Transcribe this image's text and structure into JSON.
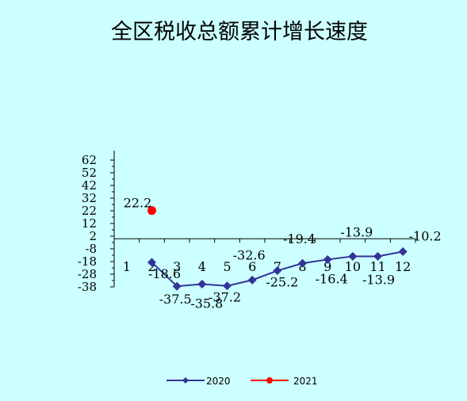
{
  "chart_data": {
    "type": "line",
    "title": "全区税收总额累计增长速度",
    "xlabel": "",
    "ylabel": "",
    "categories": [
      "1",
      "2",
      "3",
      "4",
      "5",
      "6",
      "7",
      "8",
      "9",
      "10",
      "11",
      "12"
    ],
    "ylim": [
      -38,
      62
    ],
    "yticks": [
      "62",
      "52",
      "42",
      "32",
      "22",
      "12",
      "2",
      "-8",
      "-18",
      "-28",
      "-38"
    ],
    "grid": false,
    "legend_position": "bottom",
    "series": [
      {
        "name": "2020",
        "color": "#333399",
        "marker": "diamond",
        "values": [
          null,
          -18.6,
          -37.5,
          -35.8,
          -37.2,
          -32.6,
          -25.2,
          -19.4,
          -16.4,
          -13.9,
          -13.9,
          -10.2
        ],
        "labels": [
          null,
          "-18.6",
          "-37.5",
          "-35.8",
          "-37.2",
          "-32.6",
          "-25.2",
          "-19.4",
          "-16.4",
          "-13.9",
          "-13.9",
          "-10.2"
        ]
      },
      {
        "name": "2021",
        "color": "#ff0000",
        "marker": "circle",
        "values": [
          null,
          22.2,
          null,
          null,
          null,
          null,
          null,
          null,
          null,
          null,
          null,
          null
        ],
        "labels": [
          null,
          "22.2",
          null,
          null,
          null,
          null,
          null,
          null,
          null,
          null,
          null,
          null
        ]
      }
    ]
  }
}
